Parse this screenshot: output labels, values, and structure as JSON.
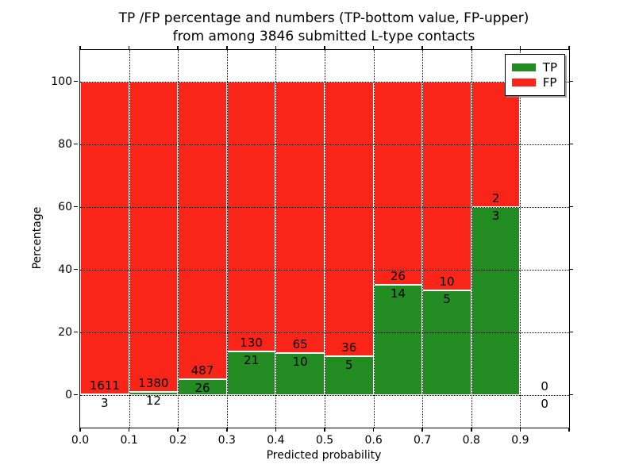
{
  "chart_data": {
    "type": "bar",
    "stacked": true,
    "normalized_to_percent": true,
    "title_line1": "TP /FP percentage and numbers (TP-bottom value, FP-upper)",
    "title_line2": "from among 3846 submitted L-type contacts",
    "title": "TP /FP percentage and numbers (TP-bottom value, FP-upper)\nfrom among 3846 submitted L-type contacts",
    "xlabel": "Predicted probability",
    "ylabel": "Percentage",
    "total_submitted_contacts": 3846,
    "bin_width": 0.1,
    "categories": [
      "0.0-0.1",
      "0.1-0.2",
      "0.2-0.3",
      "0.3-0.4",
      "0.4-0.5",
      "0.5-0.6",
      "0.6-0.7",
      "0.7-0.8",
      "0.8-0.9",
      "0.9-1.0"
    ],
    "bins": [
      {
        "x_start": 0.0,
        "x_end": 0.1,
        "center": 0.05,
        "tp_count": 3,
        "fp_count": 1611,
        "tp_percent": 0.19
      },
      {
        "x_start": 0.1,
        "x_end": 0.2,
        "center": 0.15,
        "tp_count": 12,
        "fp_count": 1380,
        "tp_percent": 0.86
      },
      {
        "x_start": 0.2,
        "x_end": 0.3,
        "center": 0.25,
        "tp_count": 26,
        "fp_count": 487,
        "tp_percent": 5.07
      },
      {
        "x_start": 0.3,
        "x_end": 0.4,
        "center": 0.35,
        "tp_count": 21,
        "fp_count": 130,
        "tp_percent": 13.91
      },
      {
        "x_start": 0.4,
        "x_end": 0.5,
        "center": 0.45,
        "tp_count": 10,
        "fp_count": 65,
        "tp_percent": 13.33
      },
      {
        "x_start": 0.5,
        "x_end": 0.6,
        "center": 0.55,
        "tp_count": 5,
        "fp_count": 36,
        "tp_percent": 12.2
      },
      {
        "x_start": 0.6,
        "x_end": 0.7,
        "center": 0.65,
        "tp_count": 14,
        "fp_count": 26,
        "tp_percent": 35.0
      },
      {
        "x_start": 0.7,
        "x_end": 0.8,
        "center": 0.75,
        "tp_count": 5,
        "fp_count": 10,
        "tp_percent": 33.33
      },
      {
        "x_start": 0.8,
        "x_end": 0.9,
        "center": 0.85,
        "tp_count": 3,
        "fp_count": 2,
        "tp_percent": 60.0
      },
      {
        "x_start": 0.9,
        "x_end": 1.0,
        "center": 0.95,
        "tp_count": 0,
        "fp_count": 0,
        "tp_percent": 0
      }
    ],
    "series": [
      {
        "name": "TP",
        "color": "#228b22",
        "counts": [
          3,
          12,
          26,
          21,
          10,
          5,
          14,
          5,
          3,
          0
        ]
      },
      {
        "name": "FP",
        "color": "#f92519",
        "counts": [
          1611,
          1380,
          487,
          130,
          65,
          36,
          26,
          10,
          2,
          0
        ]
      }
    ],
    "stack_total_percent": 100,
    "xlim": [
      0.0,
      1.0
    ],
    "ylim": [
      -10.5,
      110
    ],
    "xticks": [
      {
        "v": 0.0,
        "label": "0.0"
      },
      {
        "v": 0.1,
        "label": "0.1"
      },
      {
        "v": 0.2,
        "label": "0.2"
      },
      {
        "v": 0.3,
        "label": "0.3"
      },
      {
        "v": 0.4,
        "label": "0.4"
      },
      {
        "v": 0.5,
        "label": "0.5"
      },
      {
        "v": 0.6,
        "label": "0.6"
      },
      {
        "v": 0.7,
        "label": "0.7"
      },
      {
        "v": 0.8,
        "label": "0.8"
      },
      {
        "v": 0.9,
        "label": "0.9"
      },
      {
        "v": 1.0,
        "label": ""
      }
    ],
    "yticks": [
      {
        "v": 0,
        "label": "0"
      },
      {
        "v": 20,
        "label": "20"
      },
      {
        "v": 40,
        "label": "40"
      },
      {
        "v": 60,
        "label": "60"
      },
      {
        "v": 80,
        "label": "80"
      },
      {
        "v": 100,
        "label": "100"
      }
    ],
    "grid": "dotted",
    "legend": {
      "position": "upper right",
      "entries": [
        {
          "label": "TP",
          "color": "#228b22"
        },
        {
          "label": "FP",
          "color": "#f92519"
        }
      ]
    },
    "colors": {
      "tp": "#228b22",
      "fp": "#f92519",
      "grid": "#000000",
      "axis": "#000000",
      "background": "#ffffff"
    }
  }
}
